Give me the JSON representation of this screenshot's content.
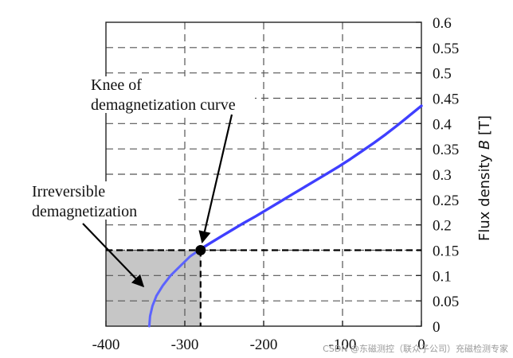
{
  "chart_data": {
    "type": "line",
    "title": "",
    "xlabel": "",
    "ylabel": "Flux density B [T]",
    "xlim": [
      -400,
      0
    ],
    "ylim": [
      0,
      0.6
    ],
    "x_ticks": [
      "-400",
      "-300",
      "-200",
      "-100",
      "0"
    ],
    "y_ticks": [
      "0",
      "0.05",
      "0.1",
      "0.15",
      "0.2",
      "0.25",
      "0.3",
      "0.35",
      "0.4",
      "0.45",
      "0.5",
      "0.55",
      "0.6"
    ],
    "grid": true,
    "y_axis_position": "right",
    "series": [
      {
        "x": [
          -345,
          -344,
          -341,
          -336,
          -328,
          -318,
          -305,
          -293,
          -282,
          -270,
          -255,
          -240,
          -225,
          -210,
          -195,
          -180,
          -165,
          -150,
          -135,
          -120,
          -105,
          -90,
          -75,
          -60,
          -45,
          -30,
          -15,
          0
        ],
        "y": [
          0.0,
          0.02,
          0.04,
          0.06,
          0.08,
          0.1,
          0.12,
          0.138,
          0.15,
          0.162,
          0.176,
          0.19,
          0.204,
          0.217,
          0.231,
          0.245,
          0.259,
          0.273,
          0.287,
          0.301,
          0.315,
          0.33,
          0.346,
          0.362,
          0.379,
          0.397,
          0.416,
          0.435
        ]
      }
    ],
    "knee_point": {
      "x": -280,
      "y": 0.15
    },
    "shaded_region": {
      "x": [
        -400,
        -280
      ],
      "y": [
        0,
        0.15
      ]
    },
    "annotations": [
      {
        "text_lines": [
          "Knee of",
          "demagnetization curve"
        ],
        "points_to": "knee_point"
      },
      {
        "text_lines": [
          "Irreversible",
          "demagnetization"
        ],
        "points_to": "shaded_region"
      }
    ],
    "colors": {
      "curve": "#3f3fff",
      "curve_irreversible": "#5c63ff",
      "shade": "#c6c6c6",
      "knee": "#000000"
    }
  },
  "watermark": "CSDN @东磁测控（联众子公司）充磁检测专家"
}
